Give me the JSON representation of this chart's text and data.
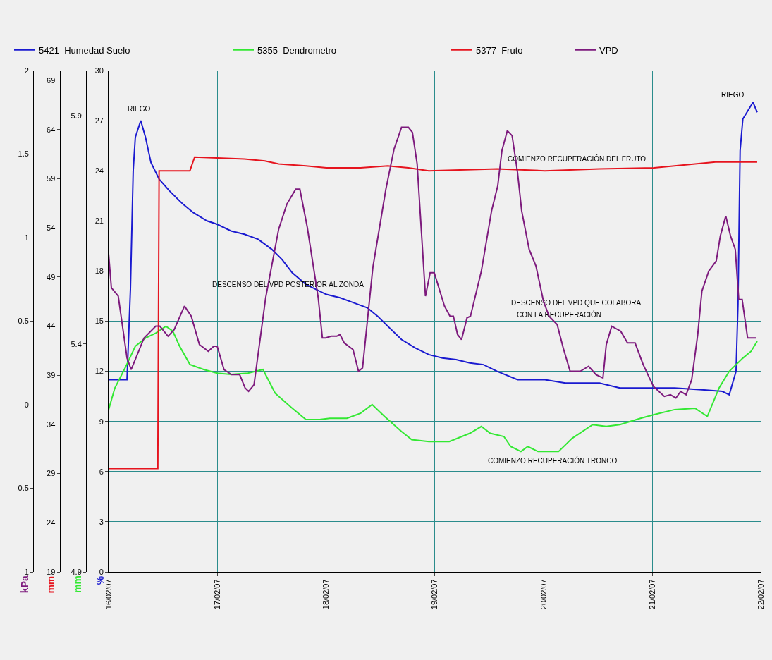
{
  "chart_data": [
    {
      "type": "line",
      "ylabel": "%",
      "ylim": [
        0,
        30
      ],
      "yticks": [
        0,
        3,
        6,
        9,
        12,
        15,
        18,
        21,
        24,
        27,
        30
      ],
      "y2label": "mm",
      "y2lim": [
        4.9,
        6.0
      ],
      "y2ticks": [
        4.9,
        5.4,
        5.9
      ],
      "y3label": "mm",
      "y3lim": [
        19,
        70
      ],
      "y3ticks": [
        19,
        24,
        29,
        34,
        39,
        44,
        49,
        54,
        59,
        64,
        69
      ],
      "xlim": [
        "--02-16",
        "--02-22"
      ],
      "xticks": [
        {
          "value": "--02-16",
          "label": "16/02/07"
        },
        {
          "value": "--02-17",
          "label": "17/02/07"
        },
        {
          "value": "--02-18",
          "label": "18/02/07"
        },
        {
          "value": "--02-19",
          "label": "19/02/07"
        },
        {
          "value": "--02-20",
          "label": "20/02/07"
        },
        {
          "value": "--02-21",
          "label": "21/02/07"
        },
        {
          "value": "--02-22",
          "label": "22/02/07"
        }
      ],
      "grid": true,
      "legend": "top",
      "line_style": "solid",
      "series": [
        {
          "name": "5421  Humedad Suelo",
          "color": "#1a1ad0",
          "x": [
            "--02-16T00:00",
            "--02-16T04:03",
            "--02-16T04:49",
            "--02-16T05:25",
            "--02-16T05:53",
            "--02-16T07:05",
            "--02-16T08:08",
            "--02-16T09:20",
            "--02-16T11:08",
            "--02-16T13:25",
            "--02-16T16:25",
            "--02-16T18:40",
            "--02-16T21:42",
            "--02-16T23:57",
            "--02-17T02:59",
            "--02-17T05:59",
            "--02-17T09:00",
            "--02-17T12:00",
            "--02-17T14:15",
            "--02-17T16:31",
            "--02-17T19:32",
            "--02-18T00:03",
            "--02-18T03:04",
            "--02-18T06:04",
            "--02-18T09:06",
            "--02-18T11:21",
            "--02-18T13:36",
            "--02-18T16:38",
            "--02-18T19:38",
            "--02-18T22:39",
            "--02-19T01:39",
            "--02-19T04:41",
            "--02-19T07:42",
            "--02-19T10:42",
            "--02-19T13:44",
            "--02-19T18:14",
            "--02-20T00:16",
            "--02-20T04:47",
            "--02-20T12:19",
            "--02-20T16:49",
            "--02-20T22:52",
            "--02-21T04:54",
            "--02-21T10:55",
            "--02-21T15:26",
            "--02-21T16:57",
            "--02-21T18:27",
            "--02-21T18:53",
            "--02-21T19:21",
            "--02-21T19:57",
            "--02-21T22:12",
            "--02-21T23:07"
          ],
          "values": [
            11.5,
            11.5,
            17,
            24,
            26,
            27.0,
            26,
            24.5,
            23.5,
            22.8,
            22,
            21.5,
            21,
            20.8,
            20.4,
            20.2,
            19.9,
            19.3,
            18.7,
            17.9,
            17.2,
            16.6,
            16.4,
            16.1,
            15.8,
            15.3,
            14.7,
            13.9,
            13.4,
            13.0,
            12.8,
            12.7,
            12.5,
            12.4,
            12.0,
            11.5,
            11.5,
            11.3,
            11.3,
            11.0,
            11.0,
            11.0,
            10.9,
            10.8,
            10.6,
            12,
            16,
            25.2,
            27.1,
            28.1,
            27.5
          ]
        },
        {
          "name": "5355  Dendrometro",
          "color": "#33e833",
          "axis": "y2",
          "x": [
            "--02-16T00:00",
            "--02-16T01:21",
            "--02-16T03:37",
            "--02-16T05:53",
            "--02-16T08:08",
            "--02-16T10:24",
            "--02-16T12:39",
            "--02-16T14:10",
            "--02-16T15:40",
            "--02-16T17:56",
            "--02-16T20:57",
            "--02-16T23:57",
            "--02-17T02:59",
            "--02-17T06:45",
            "--02-17T10:03",
            "--02-17T12:45",
            "--02-17T16:31",
            "--02-17T19:32",
            "--02-17T22:34",
            "--02-18T00:49",
            "--02-18T04:35",
            "--02-18T07:35",
            "--02-18T10:09",
            "--02-18T12:52",
            "--02-18T16:38",
            "--02-18T18:53",
            "--02-18T22:39",
            "--02-19T03:10",
            "--02-19T07:42",
            "--02-19T10:15",
            "--02-19T12:13",
            "--02-19T15:13",
            "--02-19T16:44",
            "--02-19T18:59",
            "--02-19T20:30",
            "--02-19T22:45",
            "--02-20T03:17",
            "--02-20T06:17",
            "--02-20T10:49",
            "--02-20T13:49",
            "--02-20T16:49",
            "--02-20T21:22",
            "--02-21T00:22",
            "--02-21T04:54",
            "--02-21T09:24",
            "--02-21T12:07",
            "--02-21T14:41",
            "--02-21T16:57",
            "--02-21T19:57",
            "--02-21T21:46",
            "--02-21T23:07"
          ],
          "values": [
            5.256,
            5.303,
            5.347,
            5.395,
            5.413,
            5.424,
            5.439,
            5.428,
            5.395,
            5.355,
            5.344,
            5.336,
            5.333,
            5.336,
            5.344,
            5.292,
            5.259,
            5.234,
            5.234,
            5.237,
            5.237,
            5.248,
            5.267,
            5.241,
            5.208,
            5.19,
            5.186,
            5.186,
            5.204,
            5.219,
            5.204,
            5.197,
            5.175,
            5.164,
            5.175,
            5.164,
            5.164,
            5.193,
            5.223,
            5.219,
            5.223,
            5.237,
            5.245,
            5.256,
            5.259,
            5.241,
            5.303,
            5.34,
            5.369,
            5.384,
            5.406
          ]
        },
        {
          "name": "5377  Fruto",
          "color": "#e6141e",
          "axis": "y3",
          "x": [
            "--02-16T00:00",
            "--02-16T10:51",
            "--02-16T11:08",
            "--02-16T17:56",
            "--02-16T18:59",
            "--02-17T05:59",
            "--02-17T10:29",
            "--02-17T13:31",
            "--02-17T19:32",
            "--02-18T00:03",
            "--02-18T07:35",
            "--02-18T13:36",
            "--02-18T18:09",
            "--02-18T22:39",
            "--02-19T13:44",
            "--02-20T00:16",
            "--02-20T12:19",
            "--02-21T00:22",
            "--02-21T09:24",
            "--02-21T13:55",
            "--02-21T23:07"
          ],
          "values": [
            29.5,
            29.5,
            59.8,
            59.8,
            61.2,
            61.0,
            60.8,
            60.5,
            60.3,
            60.1,
            60.1,
            60.3,
            60.1,
            59.8,
            60.0,
            59.8,
            60.0,
            60.1,
            60.5,
            60.7,
            60.7
          ]
        }
      ],
      "annotations": [
        "RIEGO",
        "RIEGO",
        "COMIENZO RECUPERACIÓN DEL FRUTO",
        "DESCENSO DEL VPD POSTERIOR AL ZONDA",
        "DESCENSO DEL VPD QUE COLABORA",
        "CON LA RECUPERACIÓN",
        "COMIENZO RECUPERACIÓN TRONCO"
      ]
    },
    {
      "type": "line",
      "ylabel": "kPa",
      "ylim": [
        -1,
        2
      ],
      "yticks": [
        -1,
        -0.5,
        0,
        0.5,
        1,
        1.5,
        2
      ],
      "xlim": [
        "--02-16",
        "--02-22"
      ],
      "tick_labels": "y",
      "legend": "top",
      "line_style": "solid",
      "series": [
        {
          "name": "VPD",
          "color": "#7d1a7d",
          "x": [
            "--02-16T00:00",
            "--02-16T00:36",
            "--02-16T02:07",
            "--02-16T04:03",
            "--02-16T04:58",
            "--02-16T07:49",
            "--02-16T10:24",
            "--02-16T11:18",
            "--02-16T13:06",
            "--02-16T14:28",
            "--02-16T16:44",
            "--02-16T18:14",
            "--02-16T20:02",
            "--02-16T21:59",
            "--02-16T23:12",
            "--02-16T23:57",
            "--02-17T01:28",
            "--02-17T03:07",
            "--02-17T04:55",
            "--02-17T06:07",
            "--02-17T06:53",
            "--02-17T08:05",
            "--02-17T10:39",
            "--02-17T13:31",
            "--02-17T15:19",
            "--02-17T17:17",
            "--02-17T18:12",
            "--02-17T19:51",
            "--02-17T22:15",
            "--02-17T23:10",
            "--02-17T23:54",
            "--02-18T01:06",
            "--02-18T02:20",
            "--02-18T03:04",
            "--02-18T03:59",
            "--02-18T05:56",
            "--02-18T07:08",
            "--02-18T08:02",
            "--02-18T10:18",
            "--02-18T13:11",
            "--02-18T14:59",
            "--02-18T16:38",
            "--02-18T18:09",
            "--02-18T19:02",
            "--02-18T20:05",
            "--02-18T21:55",
            "--02-18T22:57",
            "--02-18T23:51",
            "--02-19T02:07",
            "--02-19T03:20",
            "--02-19T04:05",
            "--02-19T05:00",
            "--02-19T05:53",
            "--02-19T07:05",
            "--02-19T07:51",
            "--02-19T10:15",
            "--02-19T12:30",
            "--02-19T13:52",
            "--02-19T14:47",
            "--02-19T15:59",
            "--02-19T17:02",
            "--02-19T18:14",
            "--02-19T19:09",
            "--02-19T20:48",
            "--02-19T22:18",
            "--02-19T23:57",
            "--02-20T01:11",
            "--02-20T02:59",
            "--02-20T04:19",
            "--02-20T05:50",
            "--02-20T08:05",
            "--02-20T09:55",
            "--02-20T11:34",
            "--02-20T13:05",
            "--02-20T13:49",
            "--02-20T15:01",
            "--02-20T17:00",
            "--02-20T18:30",
            "--02-20T20:10",
            "--02-20T21:58",
            "--02-21T00:13",
            "--02-21T02:38",
            "--02-21T03:59",
            "--02-21T05:11",
            "--02-21T06:14",
            "--02-21T07:26",
            "--02-21T08:40",
            "--02-21T10:00",
            "--02-21T10:55",
            "--02-21T12:26",
            "--02-21T14:05",
            "--02-21T14:59",
            "--02-21T16:11",
            "--02-21T17:14",
            "--02-21T18:17",
            "--02-21T19:03",
            "--02-21T19:48",
            "--02-21T21:00",
            "--02-21T22:58"
          ],
          "values": [
            0.9,
            0.7,
            0.65,
            0.28,
            0.21,
            0.4,
            0.47,
            0.47,
            0.41,
            0.45,
            0.59,
            0.53,
            0.36,
            0.32,
            0.35,
            0.35,
            0.21,
            0.18,
            0.18,
            0.1,
            0.08,
            0.12,
            0.64,
            1.05,
            1.2,
            1.29,
            1.29,
            1.06,
            0.64,
            0.4,
            0.4,
            0.41,
            0.41,
            0.42,
            0.37,
            0.33,
            0.2,
            0.22,
            0.82,
            1.29,
            1.53,
            1.66,
            1.66,
            1.63,
            1.44,
            0.65,
            0.79,
            0.79,
            0.59,
            0.53,
            0.53,
            0.42,
            0.39,
            0.52,
            0.53,
            0.8,
            1.16,
            1.31,
            1.52,
            1.64,
            1.61,
            1.39,
            1.16,
            0.93,
            0.83,
            0.62,
            0.53,
            0.48,
            0.34,
            0.2,
            0.2,
            0.23,
            0.18,
            0.16,
            0.36,
            0.47,
            0.44,
            0.37,
            0.37,
            0.24,
            0.11,
            0.05,
            0.06,
            0.04,
            0.08,
            0.06,
            0.15,
            0.42,
            0.68,
            0.8,
            0.86,
            1.01,
            1.13,
            1.01,
            0.93,
            0.63,
            0.63,
            0.4,
            0.4
          ]
        }
      ]
    }
  ]
}
